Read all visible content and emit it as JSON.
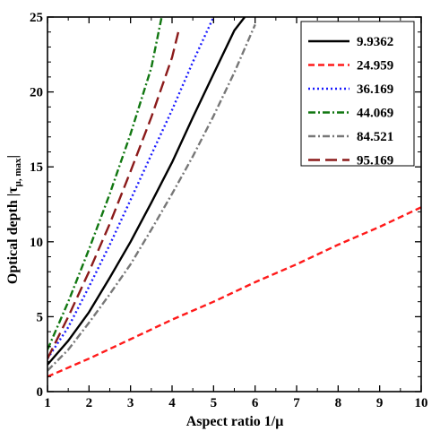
{
  "chart_data": {
    "type": "line",
    "xlabel": "Aspect ratio 1/μ",
    "ylabel_prefix": "Optical depth |τ",
    "ylabel_subscript": "μ, max",
    "ylabel_suffix": "|",
    "xlim": [
      1,
      10
    ],
    "ylim": [
      0,
      25
    ],
    "x_ticks": [
      1,
      2,
      3,
      4,
      5,
      6,
      7,
      8,
      9,
      10
    ],
    "y_ticks": [
      0,
      5,
      10,
      15,
      20,
      25
    ],
    "grid": false,
    "legend_position": "top-right",
    "series": [
      {
        "name": "9.9362",
        "color": "#000000",
        "dash": "solid",
        "x": [
          1,
          1.5,
          2,
          2.5,
          3,
          3.5,
          4,
          4.5,
          5,
          5.5,
          5.75
        ],
        "y": [
          1.8,
          3.4,
          5.3,
          7.6,
          10.0,
          12.6,
          15.3,
          18.3,
          21.2,
          24.1,
          25
        ]
      },
      {
        "name": "24.959",
        "color": "#ff1a1a",
        "dash": "dashed",
        "x": [
          1,
          2,
          3,
          4,
          5,
          6,
          7,
          8,
          9,
          10
        ],
        "y": [
          1.0,
          2.2,
          3.5,
          4.8,
          6.0,
          7.3,
          8.5,
          9.8,
          11.0,
          12.3
        ]
      },
      {
        "name": "36.169",
        "color": "#1a1aff",
        "dash": "dotted",
        "x": [
          1,
          1.5,
          2,
          2.5,
          3,
          3.5,
          4,
          4.5,
          5
        ],
        "y": [
          2.2,
          4.3,
          7.0,
          9.8,
          12.8,
          15.8,
          18.8,
          22.0,
          25.0
        ]
      },
      {
        "name": "44.069",
        "color": "#117711",
        "dash": "dashdot",
        "x": [
          1,
          1.5,
          2,
          2.5,
          3,
          3.5,
          3.75
        ],
        "y": [
          2.8,
          6.0,
          9.5,
          13.2,
          17.2,
          21.6,
          25.0
        ]
      },
      {
        "name": "84.521",
        "color": "#777777",
        "dash": "dashdot",
        "x": [
          1,
          1.5,
          2,
          2.5,
          3,
          3.5,
          4,
          4.5,
          5,
          5.5,
          6
        ],
        "y": [
          1.4,
          2.8,
          4.6,
          6.5,
          8.5,
          10.8,
          13.2,
          15.7,
          18.4,
          21.3,
          24.5
        ]
      },
      {
        "name": "95.169",
        "color": "#8b1a1a",
        "dash": "longdash",
        "x": [
          1,
          1.5,
          2,
          2.5,
          3,
          3.5,
          4,
          4.15
        ],
        "y": [
          2.2,
          5.0,
          8.0,
          11.2,
          14.7,
          18.3,
          22.3,
          24.0
        ]
      }
    ]
  }
}
